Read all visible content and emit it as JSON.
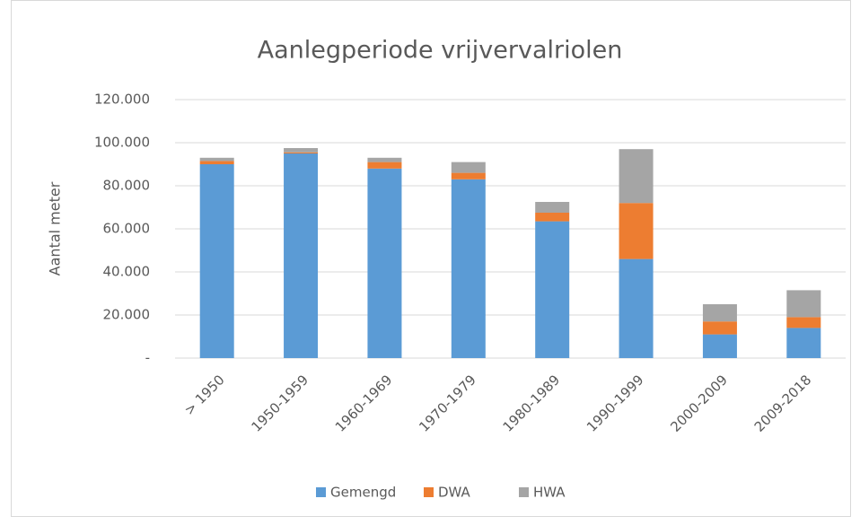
{
  "chart_data": {
    "type": "bar",
    "stacked": true,
    "title": "Aanlegperiode  vrijvervalriolen",
    "ylabel": "Aantal meter",
    "categories": [
      "> 1950",
      "1950-1959",
      "1960-1969",
      "1970-1979",
      "1980-1989",
      "1990-1999",
      "2000-2009",
      "2009-2018"
    ],
    "series": [
      {
        "name": "Gemengd",
        "color": "#5b9bd5",
        "values": [
          90000,
          95000,
          88000,
          83000,
          63500,
          46000,
          11000,
          14000
        ]
      },
      {
        "name": "DWA",
        "color": "#ed7d31",
        "values": [
          1500,
          500,
          3000,
          3000,
          4000,
          26000,
          6000,
          5000
        ]
      },
      {
        "name": "HWA",
        "color": "#a5a5a5",
        "values": [
          1500,
          2000,
          2000,
          5000,
          5000,
          25000,
          8000,
          12500
        ]
      }
    ],
    "ylim": [
      0,
      120000
    ],
    "yticks": [
      {
        "value": 0,
        "label": "-"
      },
      {
        "value": 20000,
        "label": "20.000"
      },
      {
        "value": 40000,
        "label": "40.000"
      },
      {
        "value": 60000,
        "label": "60.000"
      },
      {
        "value": 80000,
        "label": "80.000"
      },
      {
        "value": 100000,
        "label": "100.000"
      },
      {
        "value": 120000,
        "label": "120.000"
      }
    ],
    "grid": true,
    "legend": "bottom"
  }
}
